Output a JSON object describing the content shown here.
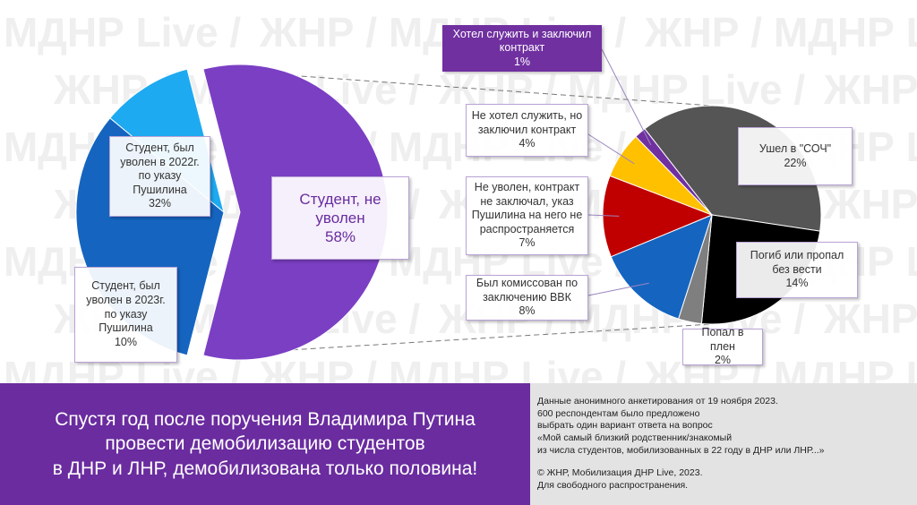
{
  "watermark": "ЖНР / МДНР Live /",
  "chart_data": [
    {
      "type": "pie",
      "categories": [
        "Студент, не уволен",
        "Студент, был уволен в 2022г. по указу Пушилина",
        "Студент, был уволен в 2023г. по указу Пушилина"
      ],
      "values": [
        58,
        32,
        10
      ],
      "value_labels": [
        "58%",
        "32%",
        "10%"
      ],
      "colors": [
        "#7b3fc4",
        "#1565c0",
        "#1eaaf1"
      ]
    },
    {
      "type": "pie",
      "categories": [
        "Ушел в \"СОЧ\"",
        "Погиб или пропал без вести",
        "Попал в плен",
        "Был комиссован по заключению ВВК",
        "Не уволен, контракт не заключал, указ Пушилина на него не распространяется",
        "Не хотел служить, но заключил контракт",
        "Хотел служить и заключил контракт"
      ],
      "values": [
        22,
        14,
        2,
        8,
        7,
        4,
        1
      ],
      "value_labels": [
        "22%",
        "14%",
        "2%",
        "8%",
        "7%",
        "4%",
        "1%"
      ],
      "colors": [
        "#555555",
        "#000000",
        "#7f7f7f",
        "#1565c0",
        "#c00000",
        "#ffc000",
        "#7030a0"
      ]
    }
  ],
  "footer": {
    "headline": [
      "Спустя год после поручения Владимира Путина",
      "провести демобилизацию студентов",
      "в ДНР и ЛНР, демобилизована только половина!"
    ],
    "note": [
      "Данные анонимного анкетирования от 19 ноября 2023.",
      "600 респондентам было предложено",
      "выбрать один вариант ответа на вопрос",
      "«Мой самый близкий родственник/знакомый",
      "из числа студентов, мобилизованных в 22 году в ДНР или ЛНР...»"
    ],
    "copyright": [
      "© ЖНР, Мобилизация ДНР Live, 2023.",
      "Для свободного распространения."
    ]
  }
}
